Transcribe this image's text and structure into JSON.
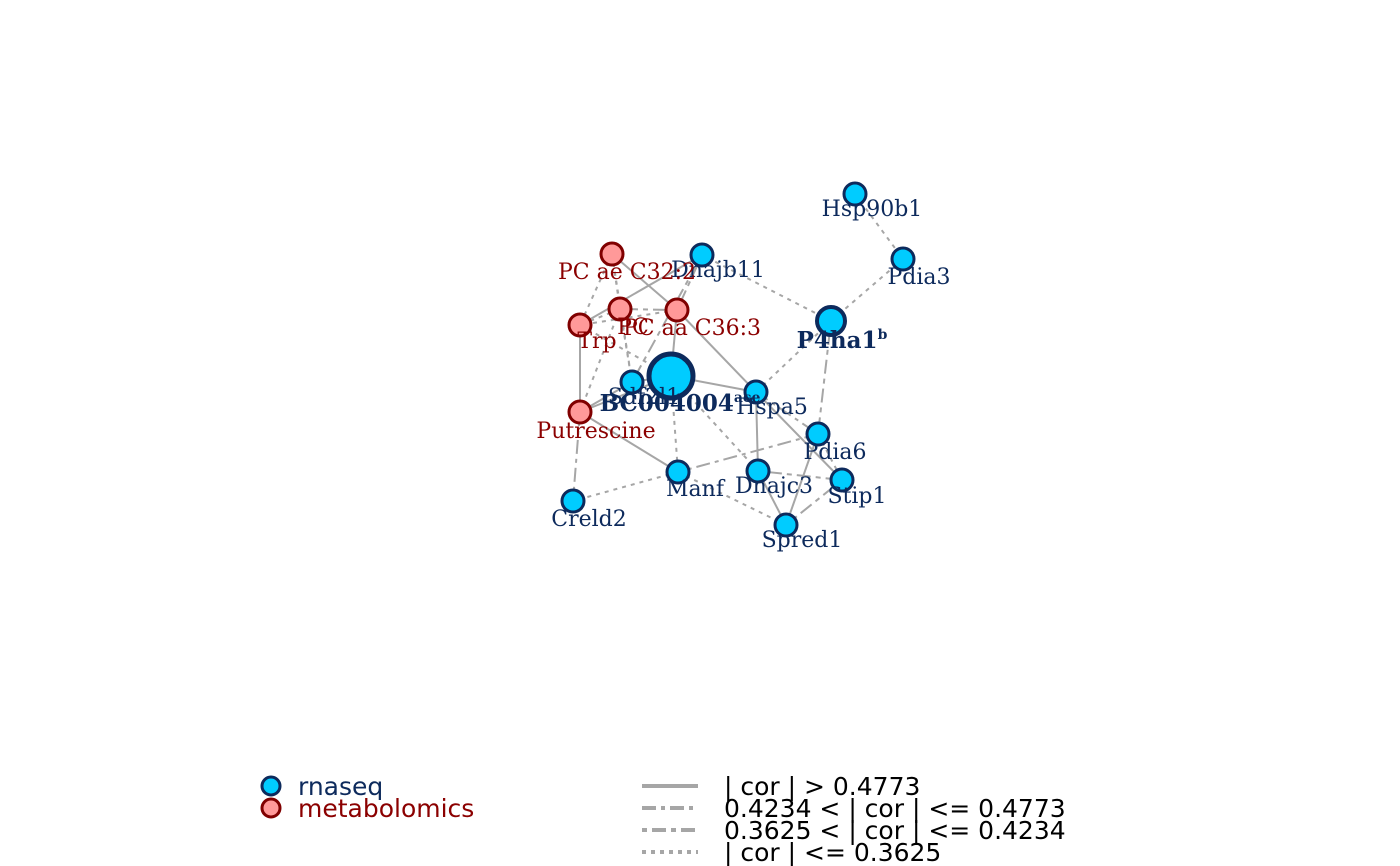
{
  "colors": {
    "rnaseq_fill": "#00CCFF",
    "rnaseq_stroke": "#0D2A5C",
    "rnaseq_text": "#0D2A5C",
    "metabolomics_fill": "#FF9999",
    "metabolomics_stroke": "#800000",
    "metabolomics_text": "#8B0000",
    "edge": "#A6A6A6"
  },
  "nodes": [
    {
      "id": "Hsp90b1",
      "label": "Hsp90b1",
      "type": "rnaseq"
    },
    {
      "id": "Pdia3",
      "label": "Pdia3",
      "type": "rnaseq"
    },
    {
      "id": "P4ha1",
      "label": "P4ha1",
      "sup": "b",
      "type": "rnaseq",
      "bold": true
    },
    {
      "id": "Dnajb11",
      "label": "Dnajb11",
      "type": "rnaseq"
    },
    {
      "id": "PCae",
      "label": "PC ae C32:2",
      "type": "metabolomics"
    },
    {
      "id": "PCaa",
      "label": "PC aa C36:3",
      "type": "metabolomics"
    },
    {
      "id": "PC",
      "label": "PC",
      "type": "metabolomics"
    },
    {
      "id": "Trp",
      "label": "Trp",
      "type": "metabolomics"
    },
    {
      "id": "BC004004",
      "label": "BC004004",
      "sup": "ace",
      "type": "rnaseq",
      "bold": true
    },
    {
      "id": "Sdf2l1",
      "label": "Sdf2l1",
      "type": "rnaseq"
    },
    {
      "id": "Hspa5",
      "label": "Hspa5",
      "type": "rnaseq"
    },
    {
      "id": "Putrescine",
      "label": "Putrescine",
      "type": "metabolomics"
    },
    {
      "id": "Pdia6",
      "label": "Pdia6",
      "type": "rnaseq"
    },
    {
      "id": "Manf",
      "label": "Manf",
      "type": "rnaseq"
    },
    {
      "id": "Dnajc3",
      "label": "Dnajc3",
      "type": "rnaseq"
    },
    {
      "id": "Stip1",
      "label": "Stip1",
      "type": "rnaseq"
    },
    {
      "id": "Creld2",
      "label": "Creld2",
      "type": "rnaseq"
    },
    {
      "id": "Spred1",
      "label": "Spred1",
      "type": "rnaseq"
    }
  ],
  "edges": [
    {
      "source": "Hsp90b1",
      "target": "Pdia3",
      "class": 4
    },
    {
      "source": "Pdia3",
      "target": "P4ha1",
      "class": 4
    },
    {
      "source": "P4ha1",
      "target": "Dnajb11",
      "class": 4
    },
    {
      "source": "P4ha1",
      "target": "Hspa5",
      "class": 4
    },
    {
      "source": "P4ha1",
      "target": "Pdia6",
      "class": 3
    },
    {
      "source": "Dnajb11",
      "target": "PCaa",
      "class": 3
    },
    {
      "source": "Dnajb11",
      "target": "Sdf2l1",
      "class": 3
    },
    {
      "source": "Dnajb11",
      "target": "Trp",
      "class": 1
    },
    {
      "source": "PCae",
      "target": "PCaa",
      "class": 1
    },
    {
      "source": "PCae",
      "target": "Trp",
      "class": 4
    },
    {
      "source": "PCae",
      "target": "PC",
      "class": 4
    },
    {
      "source": "PCae",
      "target": "Sdf2l1",
      "class": 4
    },
    {
      "source": "PCaa",
      "target": "PC",
      "class": 3
    },
    {
      "source": "PCaa",
      "target": "Hspa5",
      "class": 1
    },
    {
      "source": "PCaa",
      "target": "BC004004",
      "class": 1
    },
    {
      "source": "PCaa",
      "target": "Trp",
      "class": 4
    },
    {
      "source": "PC",
      "target": "Trp",
      "class": 2
    },
    {
      "source": "PC",
      "target": "Putrescine",
      "class": 4
    },
    {
      "source": "PC",
      "target": "Sdf2l1",
      "class": 4
    },
    {
      "source": "Trp",
      "target": "Putrescine",
      "class": 1
    },
    {
      "source": "Trp",
      "target": "BC004004",
      "class": 4
    },
    {
      "source": "Sdf2l1",
      "target": "BC004004",
      "class": 1
    },
    {
      "source": "Sdf2l1",
      "target": "Putrescine",
      "class": 1
    },
    {
      "source": "BC004004",
      "target": "Hspa5",
      "class": 1
    },
    {
      "source": "BC004004",
      "target": "Putrescine",
      "class": 1
    },
    {
      "source": "BC004004",
      "target": "Manf",
      "class": 4
    },
    {
      "source": "BC004004",
      "target": "Dnajc3",
      "class": 4
    },
    {
      "source": "Hspa5",
      "target": "Pdia6",
      "class": 2
    },
    {
      "source": "Hspa5",
      "target": "Dnajc3",
      "class": 1
    },
    {
      "source": "Hspa5",
      "target": "Stip1",
      "class": 1
    },
    {
      "source": "Putrescine",
      "target": "Manf",
      "class": 1
    },
    {
      "source": "Putrescine",
      "target": "Creld2",
      "class": 2
    },
    {
      "source": "Pdia6",
      "target": "Manf",
      "class": 2
    },
    {
      "source": "Pdia6",
      "target": "Spred1",
      "class": 1
    },
    {
      "source": "Pdia6",
      "target": "Stip1",
      "class": 4
    },
    {
      "source": "Dnajc3",
      "target": "Stip1",
      "class": 3
    },
    {
      "source": "Dnajc3",
      "target": "Spred1",
      "class": 1
    },
    {
      "source": "Manf",
      "target": "Creld2",
      "class": 4
    },
    {
      "source": "Manf",
      "target": "Spred1",
      "class": 4
    },
    {
      "source": "Stip1",
      "target": "Spred1",
      "class": 3
    }
  ],
  "legend": {
    "node_types": [
      {
        "type": "rnaseq",
        "label": "rnaseq"
      },
      {
        "type": "metabolomics",
        "label": "metabolomics"
      }
    ],
    "edge_classes": [
      {
        "class": 1,
        "label": "| cor | > 0.4773"
      },
      {
        "class": 2,
        "label": "0.4234 < | cor | <= 0.4773"
      },
      {
        "class": 3,
        "label": "0.3625 < | cor | <= 0.4234"
      },
      {
        "class": 4,
        "label": "| cor | <= 0.3625"
      }
    ]
  }
}
